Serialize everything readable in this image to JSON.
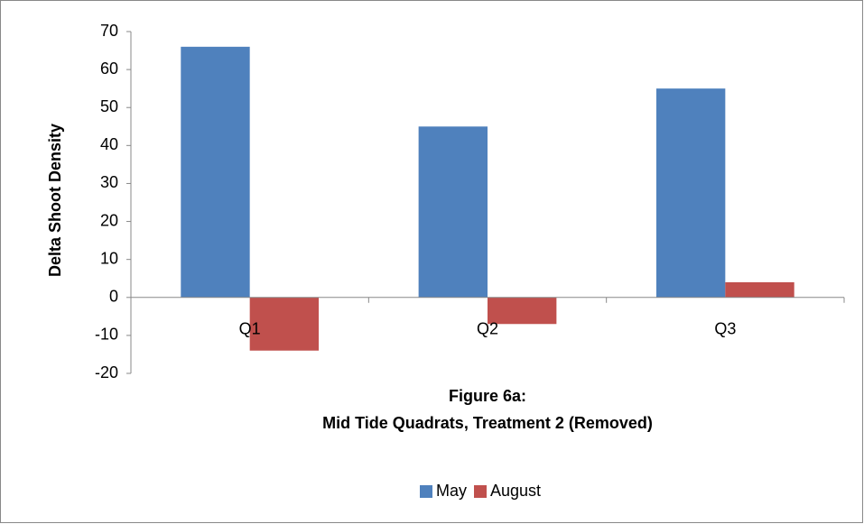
{
  "chart_data": {
    "type": "bar",
    "title": "Figure 6a:",
    "subtitle": "Mid Tide Quadrats, Treatment 2 (Removed)",
    "y_label": "Delta Shoot Density",
    "categories": [
      "Q1",
      "Q2",
      "Q3"
    ],
    "series": [
      {
        "name": "May",
        "color": "#4f81bd",
        "values": [
          66,
          45,
          55
        ]
      },
      {
        "name": "August",
        "color": "#c0504d",
        "values": [
          -14,
          -7,
          4
        ]
      }
    ],
    "ylim": [
      -20,
      70
    ],
    "yticks": [
      -20,
      -10,
      0,
      10,
      20,
      30,
      40,
      50,
      60,
      70
    ],
    "grid": false,
    "legend": "bottom"
  }
}
